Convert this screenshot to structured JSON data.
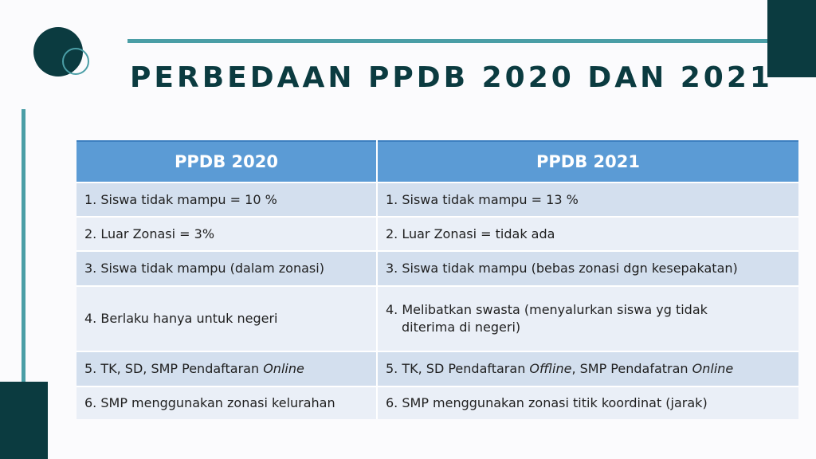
{
  "slide": {
    "title": "PERBEDAAN PPDB 2020 DAN 2021",
    "accent_dark": "#0b3b40",
    "accent_teal": "#4a9ea6"
  },
  "table": {
    "header_color": "#5b9bd5",
    "columns": [
      "PPDB 2020",
      "PPDB 2021"
    ],
    "rows": [
      {
        "left": "1. Siswa tidak mampu = 10 %",
        "right": "1. Siswa tidak mampu = 13 %"
      },
      {
        "left": "2. Luar Zonasi = 3%",
        "right": "2. Luar Zonasi = tidak ada"
      },
      {
        "left": "3. Siswa tidak mampu (dalam zonasi)",
        "right": "3. Siswa tidak mampu (bebas zonasi dgn kesepakatan)"
      },
      {
        "left": "4. Berlaku hanya untuk negeri",
        "right_line1": "4. Melibatkan swasta (menyalurkan siswa yg tidak",
        "right_line2": "diterima di negeri)"
      },
      {
        "left_prefix": "5. TK, SD, SMP Pendaftaran ",
        "left_italic": "Online",
        "right_prefix": "5. TK, SD Pendaftaran ",
        "right_italic1": "Offline",
        "right_middle": ", SMP Pendafatran ",
        "right_italic2": "Online"
      },
      {
        "left": "6. SMP menggunakan zonasi kelurahan",
        "right": "6. SMP menggunakan zonasi titik koordinat (jarak)"
      }
    ]
  }
}
